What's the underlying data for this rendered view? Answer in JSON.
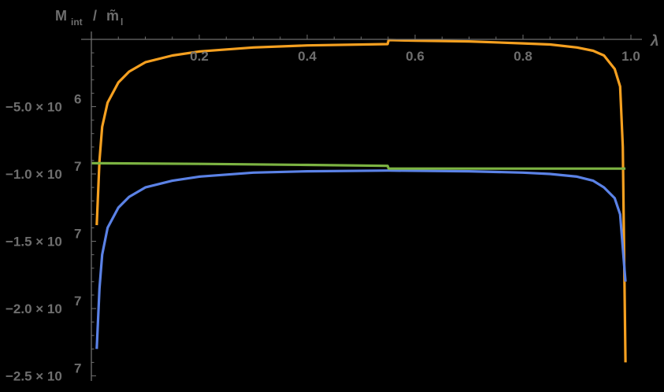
{
  "chart_data": {
    "type": "line",
    "title": "",
    "xlabel": "λ",
    "ylabel": "M_int / m̃_l",
    "ylabel_main": "M",
    "ylabel_sub": "int",
    "ylabel_slash": "/",
    "ylabel_den": "m̃",
    "ylabel_den_sub": "l",
    "xlim": [
      0,
      1.02
    ],
    "ylim": [
      -25000000,
      0
    ],
    "grid": false,
    "legend": "none",
    "x_ticks": [
      {
        "value": 0.2,
        "label": "0.2"
      },
      {
        "value": 0.4,
        "label": "0.4"
      },
      {
        "value": 0.6,
        "label": "0.6"
      },
      {
        "value": 0.8,
        "label": "0.8"
      },
      {
        "value": 1.0,
        "label": "1.0"
      }
    ],
    "y_ticks": [
      {
        "value": -5000000,
        "mant": "−5.0",
        "exp": "6"
      },
      {
        "value": -10000000,
        "mant": "−1.0",
        "exp": "7"
      },
      {
        "value": -15000000,
        "mant": "−1.5",
        "exp": "7"
      },
      {
        "value": -20000000,
        "mant": "−2.0",
        "exp": "7"
      },
      {
        "value": -25000000,
        "mant": "−2.5",
        "exp": "7"
      }
    ],
    "series": [
      {
        "name": "orange",
        "color": "#f5a020",
        "x": [
          0.01,
          0.015,
          0.02,
          0.03,
          0.05,
          0.07,
          0.1,
          0.15,
          0.2,
          0.3,
          0.4,
          0.549,
          0.551,
          0.6,
          0.7,
          0.8,
          0.85,
          0.9,
          0.93,
          0.95,
          0.97,
          0.98,
          0.985,
          0.99
        ],
        "values": [
          -13800000,
          -9000000,
          -6500000,
          -4700000,
          -3200000,
          -2400000,
          -1700000,
          -1200000,
          -900000,
          -600000,
          -450000,
          -350000,
          -50000,
          -100000,
          -150000,
          -300000,
          -380000,
          -600000,
          -850000,
          -1200000,
          -2200000,
          -3500000,
          -8000000,
          -24000000
        ]
      },
      {
        "name": "blue",
        "color": "#5b82e6",
        "x": [
          0.01,
          0.015,
          0.02,
          0.03,
          0.05,
          0.07,
          0.1,
          0.15,
          0.2,
          0.3,
          0.4,
          0.55,
          0.7,
          0.8,
          0.85,
          0.9,
          0.93,
          0.95,
          0.97,
          0.98,
          0.985,
          0.99
        ],
        "values": [
          -23000000,
          -18500000,
          -16000000,
          -14000000,
          -12500000,
          -11700000,
          -11000000,
          -10500000,
          -10200000,
          -9900000,
          -9800000,
          -9750000,
          -9800000,
          -9900000,
          -10000000,
          -10200000,
          -10500000,
          -11000000,
          -11800000,
          -13000000,
          -15500000,
          -18000000
        ]
      },
      {
        "name": "green",
        "color": "#7cb342",
        "x": [
          0.0,
          0.2,
          0.4,
          0.549,
          0.551,
          0.8,
          0.99
        ],
        "values": [
          -9200000,
          -9250000,
          -9330000,
          -9400000,
          -9600000,
          -9600000,
          -9600000
        ]
      }
    ]
  }
}
